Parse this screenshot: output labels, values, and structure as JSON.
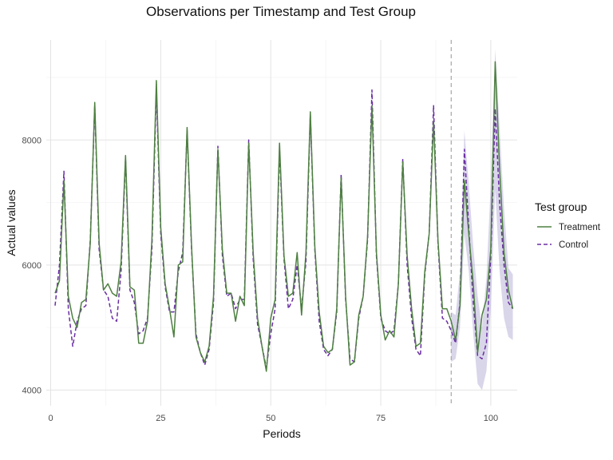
{
  "chart_data": {
    "type": "line",
    "title": "Observations per Timestamp and Test Group",
    "xlabel": "Periods",
    "ylabel": "Actual values",
    "xlim": [
      -1,
      106
    ],
    "ylim": [
      3750,
      9600
    ],
    "x_ticks": [
      0,
      25,
      50,
      75,
      100
    ],
    "x_tick_labels": [
      "0",
      "25",
      "50",
      "75",
      "100"
    ],
    "y_ticks": [
      4000,
      6000,
      8000
    ],
    "y_tick_labels": [
      "4000",
      "6000",
      "8000"
    ],
    "grid": true,
    "legend_title": "Test group",
    "legend_position": "right",
    "vline": 91,
    "x": [
      1,
      2,
      3,
      4,
      5,
      6,
      7,
      8,
      9,
      10,
      11,
      12,
      13,
      14,
      15,
      16,
      17,
      18,
      19,
      20,
      21,
      22,
      23,
      24,
      25,
      26,
      27,
      28,
      29,
      30,
      31,
      32,
      33,
      34,
      35,
      36,
      37,
      38,
      39,
      40,
      41,
      42,
      43,
      44,
      45,
      46,
      47,
      48,
      49,
      50,
      51,
      52,
      53,
      54,
      55,
      56,
      57,
      58,
      59,
      60,
      61,
      62,
      63,
      64,
      65,
      66,
      67,
      68,
      69,
      70,
      71,
      72,
      73,
      74,
      75,
      76,
      77,
      78,
      79,
      80,
      81,
      82,
      83,
      84,
      85,
      86,
      87,
      88,
      89,
      90,
      91,
      92,
      93,
      94,
      95,
      96,
      97,
      98,
      99,
      100,
      101,
      102,
      103,
      104,
      105
    ],
    "series": [
      {
        "name": "Treatment",
        "color": "#4d8040",
        "dash": "solid",
        "values": [
          5550,
          5750,
          7350,
          5500,
          5150,
          5000,
          5400,
          5450,
          6350,
          8600,
          6350,
          5600,
          5700,
          5550,
          5500,
          6050,
          7750,
          5650,
          5600,
          4750,
          4750,
          5100,
          6400,
          8950,
          6600,
          5700,
          5300,
          4850,
          6000,
          6050,
          8200,
          6300,
          4850,
          4600,
          4450,
          4700,
          5500,
          7850,
          6250,
          5550,
          5550,
          5100,
          5500,
          5350,
          7950,
          6200,
          5150,
          4700,
          4300,
          5150,
          5450,
          7950,
          6150,
          5500,
          5550,
          6200,
          5200,
          6200,
          8450,
          6300,
          5250,
          4700,
          4600,
          4650,
          5300,
          7400,
          5500,
          4400,
          4450,
          5200,
          5500,
          6450,
          8550,
          6200,
          5200,
          4800,
          4950,
          4850,
          5700,
          7650,
          6150,
          5300,
          4700,
          4750,
          5900,
          6500,
          8300,
          6400,
          5300,
          5300,
          5100,
          4800,
          5350,
          7350,
          6500,
          5700,
          4600,
          5200,
          5450,
          6250,
          9250,
          7550,
          6200,
          5600,
          5300
        ]
      },
      {
        "name": "Control",
        "color": "#6a2ea3",
        "dash": "dashed",
        "values": [
          5350,
          6000,
          7500,
          5300,
          4700,
          5100,
          5300,
          5350,
          6400,
          8550,
          6250,
          5600,
          5500,
          5150,
          5100,
          5900,
          7700,
          5600,
          5400,
          4900,
          4950,
          5150,
          6250,
          8800,
          6500,
          5650,
          5250,
          5250,
          5900,
          6200,
          8150,
          6250,
          4900,
          4600,
          4400,
          4650,
          5400,
          7900,
          6150,
          5500,
          5550,
          5300,
          5450,
          5450,
          8000,
          6100,
          5050,
          4700,
          4350,
          4900,
          5300,
          7850,
          6100,
          5300,
          5450,
          6000,
          5300,
          6050,
          8400,
          6250,
          5100,
          4650,
          4550,
          4650,
          5250,
          7450,
          5450,
          4500,
          4450,
          5150,
          5500,
          6400,
          8800,
          6150,
          5150,
          4950,
          4900,
          4950,
          5700,
          7700,
          6000,
          5150,
          4650,
          4550,
          5850,
          6500,
          8550,
          6350,
          5150,
          5100,
          4950,
          4750,
          5400,
          7850,
          6600,
          5400,
          4550,
          4500,
          4750,
          6150,
          8500,
          7000,
          6000,
          5400,
          5300
        ]
      }
    ],
    "band": {
      "color": "#9c93c9",
      "x": [
        91,
        92,
        93,
        94,
        95,
        96,
        97,
        98,
        99,
        100,
        101,
        102,
        103,
        104,
        105
      ],
      "lower": [
        4450,
        4500,
        5000,
        6500,
        5900,
        4900,
        4100,
        4000,
        4300,
        5300,
        7200,
        5900,
        5150,
        4850,
        4800
      ],
      "upper": [
        5250,
        5200,
        5900,
        8150,
        7300,
        6300,
        5500,
        5000,
        5800,
        7300,
        9450,
        8200,
        6900,
        5950,
        5850
      ]
    }
  }
}
